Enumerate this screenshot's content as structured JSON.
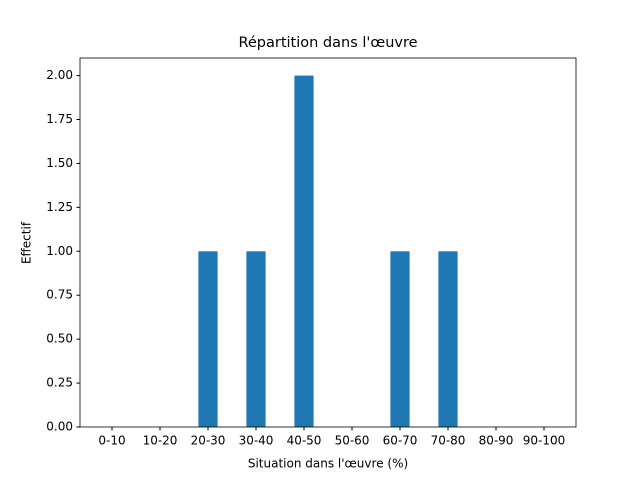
{
  "chart_data": {
    "type": "bar",
    "title": "Répartition dans l'œuvre",
    "x_label": "Situation dans l'œuvre (%)",
    "y_label": "Effectif",
    "categories": [
      "0-10",
      "10-20",
      "20-30",
      "30-40",
      "40-50",
      "50-60",
      "60-70",
      "70-80",
      "80-90",
      "90-100"
    ],
    "values": [
      0,
      0,
      1,
      1,
      2,
      0,
      1,
      1,
      0,
      0
    ],
    "color": "#1f77b4",
    "ylim": [
      0,
      2.1
    ],
    "yticks": [
      {
        "value": 0,
        "label": "0.00"
      },
      {
        "value": 0.25,
        "label": "0.25"
      },
      {
        "value": 0.5,
        "label": "0.50"
      },
      {
        "value": 0.75,
        "label": "0.75"
      },
      {
        "value": 1,
        "label": "1.00"
      },
      {
        "value": 1.25,
        "label": "1.25"
      },
      {
        "value": 1.5,
        "label": "1.50"
      },
      {
        "value": 1.75,
        "label": "1.75"
      },
      {
        "value": 2,
        "label": "2.00"
      }
    ],
    "grid": false
  }
}
